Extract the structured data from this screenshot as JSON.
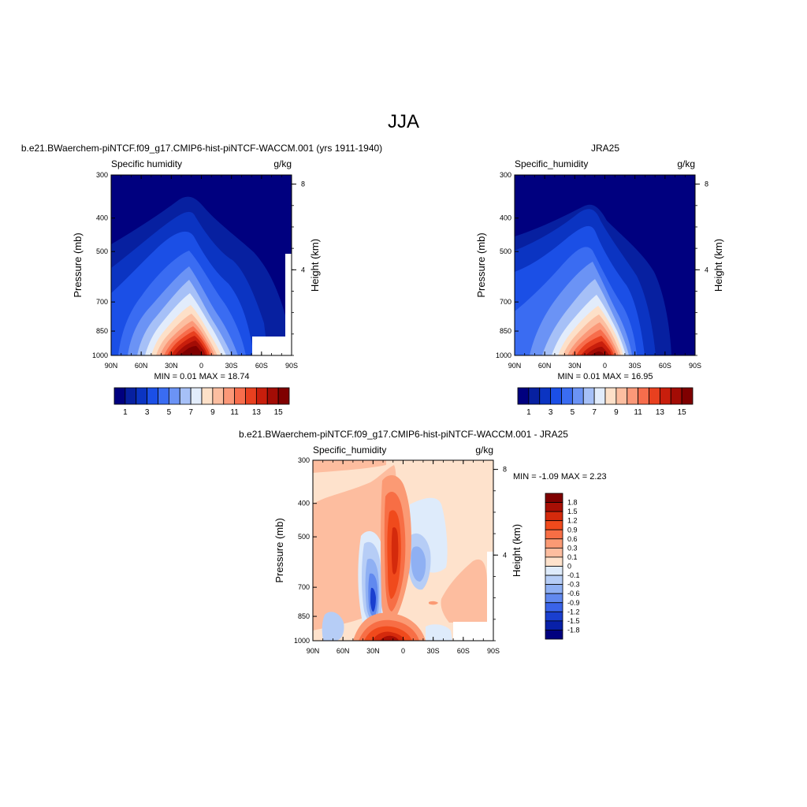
{
  "page_title": "JJA",
  "chart_data": [
    {
      "type": "heatmap",
      "title": "b.e21.BWaerchem-piNTCF.f09_g17.CMIP6-hist-piNTCF-WACCM.001 (yrs 1911-1940)",
      "left_label": "Specific humidity",
      "units": "g/kg",
      "ylabel": "Pressure (mb)",
      "ylabel_right": "Height (km)",
      "x_ticks": [
        "90N",
        "60N",
        "30N",
        "0",
        "30S",
        "60S",
        "90S"
      ],
      "y_ticks": [
        "300",
        "400",
        "500",
        "700",
        "850",
        "1000"
      ],
      "y2_ticks": [
        "8",
        "4"
      ],
      "ylim": [
        1000,
        300
      ],
      "xlim": [
        "90N",
        "90S"
      ],
      "stats": "MIN =   0.01  MAX =  18.74",
      "min": 0.01,
      "max": 18.74,
      "colorbar": {
        "orientation": "horizontal",
        "labels": [
          "1",
          "3",
          "5",
          "7",
          "9",
          "11",
          "13",
          "15"
        ]
      }
    },
    {
      "type": "heatmap",
      "title": "JRA25",
      "left_label": "Specific_humidity",
      "units": "g/kg",
      "ylabel": "Pressure (mb)",
      "ylabel_right": "Height (km)",
      "x_ticks": [
        "90N",
        "60N",
        "30N",
        "0",
        "30S",
        "60S",
        "90S"
      ],
      "y_ticks": [
        "300",
        "400",
        "500",
        "700",
        "850",
        "1000"
      ],
      "y2_ticks": [
        "8",
        "4"
      ],
      "ylim": [
        1000,
        300
      ],
      "xlim": [
        "90N",
        "90S"
      ],
      "stats": "MIN =   0.01  MAX =  16.95",
      "min": 0.01,
      "max": 16.95,
      "colorbar": {
        "orientation": "horizontal",
        "labels": [
          "1",
          "3",
          "5",
          "7",
          "9",
          "11",
          "13",
          "15"
        ]
      }
    },
    {
      "type": "heatmap",
      "title": "b.e21.BWaerchem-piNTCF.f09_g17.CMIP6-hist-piNTCF-WACCM.001 - JRA25",
      "left_label": "Specific_humidity",
      "units": "g/kg",
      "ylabel": "Pressure (mb)",
      "ylabel_right": "Height (km)",
      "x_ticks": [
        "90N",
        "60N",
        "30N",
        "0",
        "30S",
        "60S",
        "90S"
      ],
      "y_ticks": [
        "300",
        "400",
        "500",
        "700",
        "850",
        "1000"
      ],
      "y2_ticks": [
        "8",
        "4"
      ],
      "ylim": [
        1000,
        300
      ],
      "xlim": [
        "90N",
        "90S"
      ],
      "stats": "MIN =  -1.09  MAX =   2.23",
      "min": -1.09,
      "max": 2.23,
      "colorbar": {
        "orientation": "vertical",
        "labels": [
          "1.8",
          "1.5",
          "1.2",
          "0.9",
          "0.6",
          "0.3",
          "0.1",
          "0",
          "-0.1",
          "-0.3",
          "-0.6",
          "-0.9",
          "-1.2",
          "-1.5",
          "-1.8"
        ]
      }
    }
  ],
  "colors": {
    "absolute_levels": [
      "#00007f",
      "#0720a0",
      "#0b34c2",
      "#1b4fe6",
      "#3a6cf2",
      "#6b93f5",
      "#a6c0f7",
      "#e2ecfb",
      "#fde0c8",
      "#fcbea0",
      "#fb9878",
      "#f76d4c",
      "#e8401f",
      "#c81e0c",
      "#a30c05",
      "#7f0000"
    ],
    "diff_levels": [
      "#7f0000",
      "#a80f05",
      "#d42a0c",
      "#f04a1c",
      "#f76e45",
      "#fb9a74",
      "#fdbd9f",
      "#fee2cc",
      "#deebfb",
      "#b6cdf6",
      "#8fb0f3",
      "#6189ef",
      "#3a63e8",
      "#1a3fcf",
      "#0820a8",
      "#00007f"
    ]
  }
}
